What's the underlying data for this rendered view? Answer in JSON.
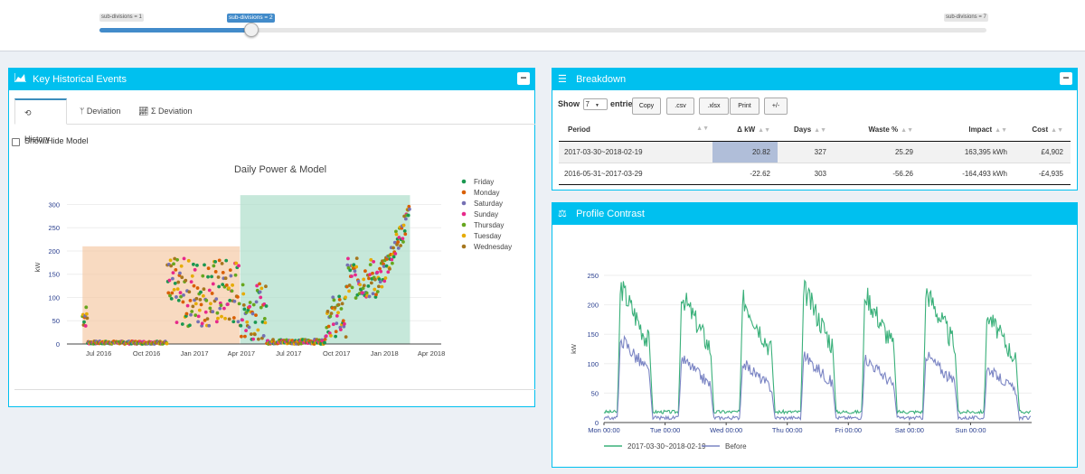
{
  "slider": {
    "min_label": "sub-divisions = 1",
    "current_label": "sub-divisions = 2",
    "max_label": "sub-divisions = 7",
    "value_fraction": 0.1667
  },
  "key_events": {
    "title": "Key Historical Events",
    "tabs": [
      {
        "label": "History",
        "icon": "history-icon"
      },
      {
        "label": "Deviation",
        "icon": "branch-icon"
      },
      {
        "label": "Σ Deviation",
        "icon": "line-chart-icon"
      }
    ],
    "show_hide_label": "Show/Hide Model"
  },
  "breakdown": {
    "title": "Breakdown",
    "show_label": "Show",
    "entries_value": "7",
    "entries_label": "entries",
    "buttons": [
      "Copy",
      ".csv",
      ".xlsx",
      "Print",
      "+/-"
    ],
    "columns": [
      "Period",
      "Δ kW",
      "Days",
      "Waste %",
      "Impact",
      "Cost"
    ],
    "rows": [
      [
        "2017-03-30~2018-02-19",
        "20.82",
        "327",
        "25.29",
        "163,395 kWh",
        "£4,902"
      ],
      [
        "2016-05-31~2017-03-29",
        "-22.62",
        "303",
        "-56.26",
        "-164,493 kWh",
        "-£4,935"
      ]
    ]
  },
  "profile": {
    "title": "Profile Contrast"
  },
  "colors": {
    "accent": "#00c0ef",
    "friday": "#1a9850",
    "monday": "#d95f02",
    "saturday": "#7570b3",
    "sunday": "#e7298a",
    "thursday": "#66a61e",
    "tuesday": "#e6ab02",
    "wednesday": "#a6761d"
  },
  "chart_data": [
    {
      "type": "scatter",
      "title": "Daily Power & Model",
      "xlabel": "",
      "ylabel": "kW",
      "x_ticks": [
        "Jul 2016",
        "Oct 2016",
        "Jan 2017",
        "Apr 2017",
        "Jul 2017",
        "Oct 2017",
        "Jan 2018",
        "Apr 2018"
      ],
      "y_ticks": [
        "0",
        "50",
        "100",
        "150",
        "200",
        "250",
        "300"
      ],
      "ylim": [
        0,
        330
      ],
      "xlim": [
        "2016-05-01",
        "2018-04-20"
      ],
      "legend_position": "right",
      "model_regions": [
        {
          "start": "2016-05-31",
          "end": "2017-03-29",
          "level": 210,
          "color": "#f5c6a0"
        },
        {
          "start": "2017-03-30",
          "end": "2018-02-19",
          "level": 320,
          "color": "#a8dcc6"
        }
      ],
      "series": [
        {
          "name": "Friday"
        },
        {
          "name": "Monday"
        },
        {
          "name": "Saturday"
        },
        {
          "name": "Sunday"
        },
        {
          "name": "Thursday"
        },
        {
          "name": "Tuesday"
        },
        {
          "name": "Wednesday"
        }
      ],
      "segments": [
        {
          "start": "2016-05-31",
          "end": "2016-06-10",
          "mean": 60,
          "spread": 25
        },
        {
          "start": "2016-06-10",
          "end": "2016-11-10",
          "mean": 3,
          "spread": 3
        },
        {
          "start": "2016-11-10",
          "end": "2017-03-29",
          "mean": 110,
          "spread": 75
        },
        {
          "start": "2017-03-30",
          "end": "2017-05-20",
          "mean": 70,
          "spread": 60
        },
        {
          "start": "2017-05-20",
          "end": "2017-09-10",
          "mean": 5,
          "spread": 5
        },
        {
          "start": "2017-09-10",
          "end": "2017-10-20",
          "mean": 60,
          "spread": 45
        },
        {
          "start": "2017-10-20",
          "end": "2017-12-20",
          "mean": 140,
          "spread": 45
        },
        {
          "start": "2017-12-20",
          "end": "2018-02-19",
          "mean": 200,
          "spread": 70
        }
      ]
    },
    {
      "type": "line",
      "title": "",
      "xlabel": "",
      "ylabel": "kW",
      "categories": [
        "Mon 00:00",
        "Tue 00:00",
        "Wed 00:00",
        "Thu 00:00",
        "Fri 00:00",
        "Sat 00:00",
        "Sun 00:00"
      ],
      "y_ticks": [
        "0",
        "50",
        "100",
        "150",
        "200",
        "250"
      ],
      "ylim": [
        0,
        250
      ],
      "legend_position": "bottom",
      "series": [
        {
          "name": "2017-03-30~2018-02-19",
          "color": "#3ab07a",
          "daily_peaks": [
            233,
            218,
            212,
            227,
            222,
            225,
            185
          ],
          "evening": 15
        },
        {
          "name": "Before",
          "color": "#7b85c4",
          "daily_peaks": [
            145,
            110,
            102,
            115,
            110,
            116,
            93
          ],
          "evening": 5
        }
      ]
    }
  ]
}
